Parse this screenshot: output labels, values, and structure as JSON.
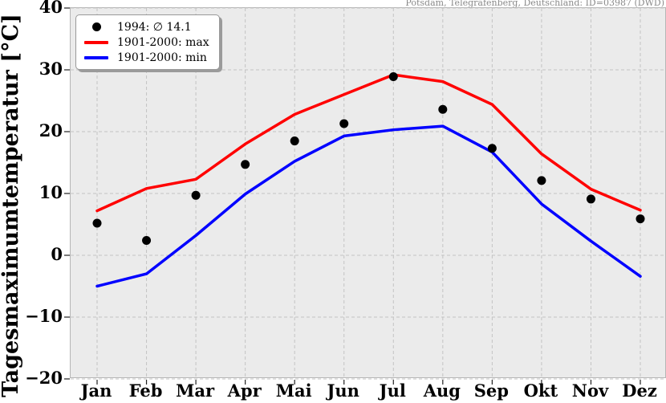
{
  "chart_data": {
    "type": "line",
    "station": "Potsdam, Telegrafenberg, Deutschland: ID=03987 (DWD)",
    "ylabel": "Tagesmaximumtemperatur [°C]",
    "categories": [
      "Jan",
      "Feb",
      "Mar",
      "Apr",
      "Mai",
      "Jun",
      "Jul",
      "Aug",
      "Sep",
      "Okt",
      "Nov",
      "Dez"
    ],
    "ylim": [
      -20,
      40
    ],
    "yticks": [
      40,
      30,
      20,
      10,
      0,
      -10,
      -20
    ],
    "ytick_labels": [
      "40",
      "30",
      "20",
      "10",
      "0",
      "−10",
      "−20"
    ],
    "grid": true,
    "legend_position": "upper left",
    "plot_bg_color": "#ebebeb",
    "gridline_color": "#c3c3c3",
    "series": [
      {
        "name": "1994: ∅ 14.1",
        "style": "scatter",
        "color": "#000000",
        "values": [
          5.2,
          2.4,
          9.7,
          14.7,
          18.5,
          21.3,
          28.9,
          23.6,
          17.3,
          12.1,
          9.1,
          5.9
        ]
      },
      {
        "name": "1901-2000: max",
        "style": "line",
        "color": "#ff0000",
        "values": [
          7.2,
          10.8,
          12.3,
          18.0,
          22.8,
          26.0,
          29.2,
          28.1,
          24.4,
          16.4,
          10.7,
          7.3
        ]
      },
      {
        "name": "1901-2000: min",
        "style": "line",
        "color": "#0000ff",
        "values": [
          -5.0,
          -3.0,
          3.2,
          9.9,
          15.2,
          19.3,
          20.3,
          20.9,
          16.7,
          8.3,
          2.3,
          -3.4
        ]
      }
    ]
  }
}
